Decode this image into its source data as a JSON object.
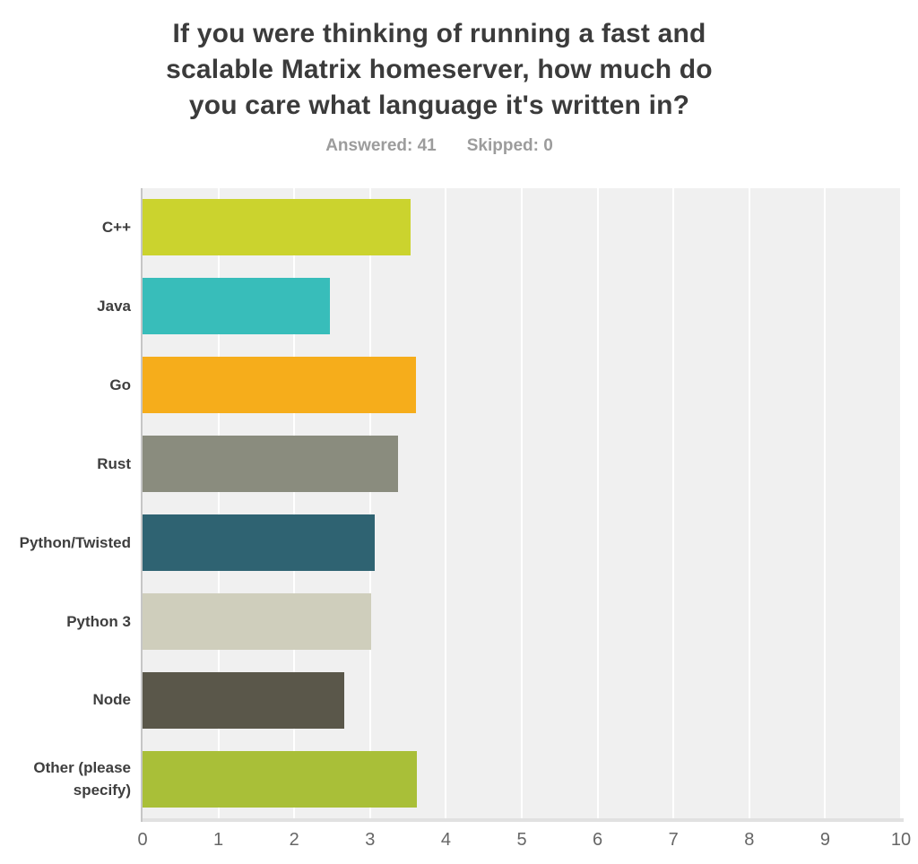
{
  "header": {
    "title_lines": [
      "If you were thinking of running a fast and",
      "scalable Matrix homeserver, how much do",
      "you care what language it's written in?"
    ],
    "answered": "Answered: 41",
    "skipped": "Skipped: 0"
  },
  "chart_data": {
    "type": "bar",
    "orientation": "horizontal",
    "title": "If you were thinking of running a fast and scalable Matrix homeserver, how much do you care what language it's written in?",
    "answered_count": 41,
    "skipped_count": 0,
    "categories": [
      "C++",
      "Java",
      "Go",
      "Rust",
      "Python/Twisted",
      "Python 3",
      "Node",
      "Other (please specify)"
    ],
    "values": [
      3.54,
      2.47,
      3.61,
      3.37,
      3.06,
      3.02,
      2.66,
      3.62
    ],
    "bar_colors": [
      "#cbd32e",
      "#38bdba",
      "#f6ad1b",
      "#8a8c7e",
      "#2f6372",
      "#cfcebc",
      "#5a574a",
      "#a9bf38"
    ],
    "xlabel": "",
    "ylabel": "",
    "xlim": [
      0,
      10
    ],
    "x_ticks": [
      0,
      1,
      2,
      3,
      4,
      5,
      6,
      7,
      8,
      9,
      10
    ],
    "grid": true,
    "legend": false,
    "plot_background": "#f0f0f0",
    "gridline_color": "#ffffff",
    "axis_line_color": "#c6c6c6",
    "tick_label_color": "#666666",
    "category_label_color": "#3e3e3e",
    "title_color": "#3b3b3b",
    "subtitle_color": "#9c9c9c"
  }
}
